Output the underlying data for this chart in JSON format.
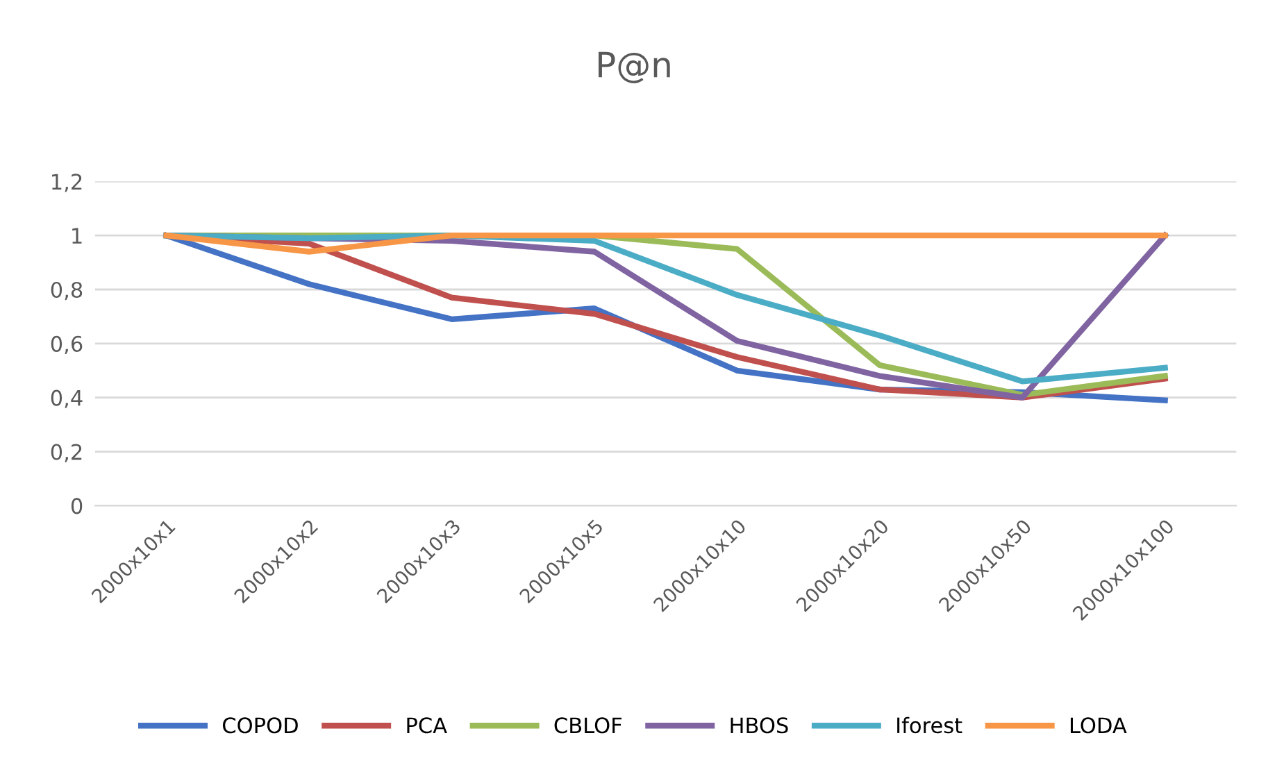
{
  "chart_data": {
    "type": "line",
    "title": "P@n",
    "categories": [
      "2000x10x1",
      "2000x10x2",
      "2000x10x3",
      "2000x10x5",
      "2000x10x10",
      "2000x10x20",
      "2000x10x50",
      "2000x10x100"
    ],
    "series": [
      {
        "name": "COPOD",
        "color": "#4472c4",
        "values": [
          1,
          0.82,
          0.69,
          0.73,
          0.5,
          0.43,
          0.42,
          0.39
        ]
      },
      {
        "name": "PCA",
        "color": "#c0504d",
        "values": [
          1,
          0.97,
          0.77,
          0.71,
          0.55,
          0.43,
          0.4,
          0.47
        ]
      },
      {
        "name": "CBLOF",
        "color": "#9bbb59",
        "values": [
          1,
          1,
          1,
          1,
          0.95,
          0.52,
          0.41,
          0.48
        ]
      },
      {
        "name": "HBOS",
        "color": "#8064a2",
        "values": [
          1,
          0.99,
          0.98,
          0.94,
          0.61,
          0.48,
          0.4,
          1
        ]
      },
      {
        "name": "Iforest",
        "color": "#4bacc6",
        "values": [
          1,
          0.99,
          1,
          0.98,
          0.78,
          0.63,
          0.46,
          0.51
        ]
      },
      {
        "name": "LODA",
        "color": "#f79646",
        "values": [
          1,
          0.94,
          1,
          1,
          1,
          1,
          1,
          1
        ]
      }
    ],
    "ylim": [
      0,
      1.2
    ],
    "yticks": [
      0,
      {
        "value": 0.2,
        "label": "0,2"
      },
      {
        "value": 0.4,
        "label": "0,4"
      },
      {
        "value": 0.6,
        "label": "0,6"
      },
      {
        "value": 0.8,
        "label": "0,8"
      },
      1,
      {
        "value": 1.2,
        "label": "1,2"
      }
    ],
    "grid": "y",
    "legend": "bottom",
    "marker": "none",
    "line_style": "solid"
  }
}
